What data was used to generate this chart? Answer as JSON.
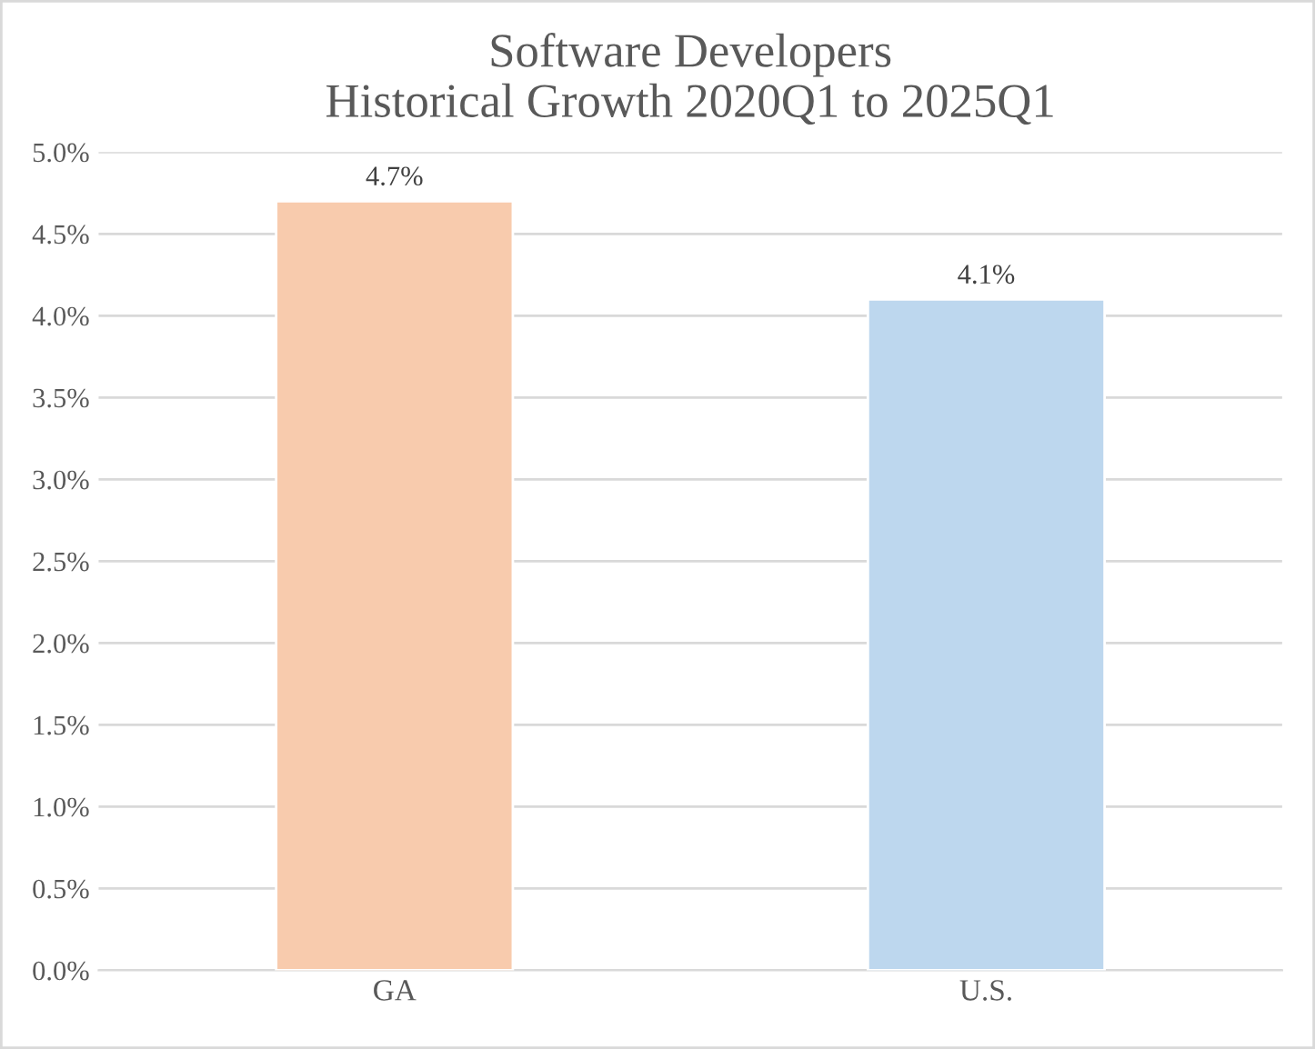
{
  "chart_data": {
    "type": "bar",
    "title": "Software Developers\nHistorical Growth 2020Q1 to 2025Q1",
    "categories": [
      "GA",
      "U.S."
    ],
    "values": [
      4.7,
      4.1
    ],
    "colors": [
      "#f8cbad",
      "#bdd7ee"
    ],
    "value_labels": [
      "4.7%",
      "4.1%"
    ],
    "ylim": [
      0,
      5
    ],
    "yticks": [
      {
        "value": 0,
        "label": "0.0%"
      },
      {
        "value": 0.5,
        "label": "0.5%"
      },
      {
        "value": 1,
        "label": "1.0%"
      },
      {
        "value": 1.5,
        "label": "1.5%"
      },
      {
        "value": 2,
        "label": "2.0%"
      },
      {
        "value": 2.5,
        "label": "2.5%"
      },
      {
        "value": 3,
        "label": "3.0%"
      },
      {
        "value": 3.5,
        "label": "3.5%"
      },
      {
        "value": 4,
        "label": "4.0%"
      },
      {
        "value": 4.5,
        "label": "4.5%"
      },
      {
        "value": 5,
        "label": "5.0%"
      }
    ],
    "grid": "y",
    "legend": false
  }
}
